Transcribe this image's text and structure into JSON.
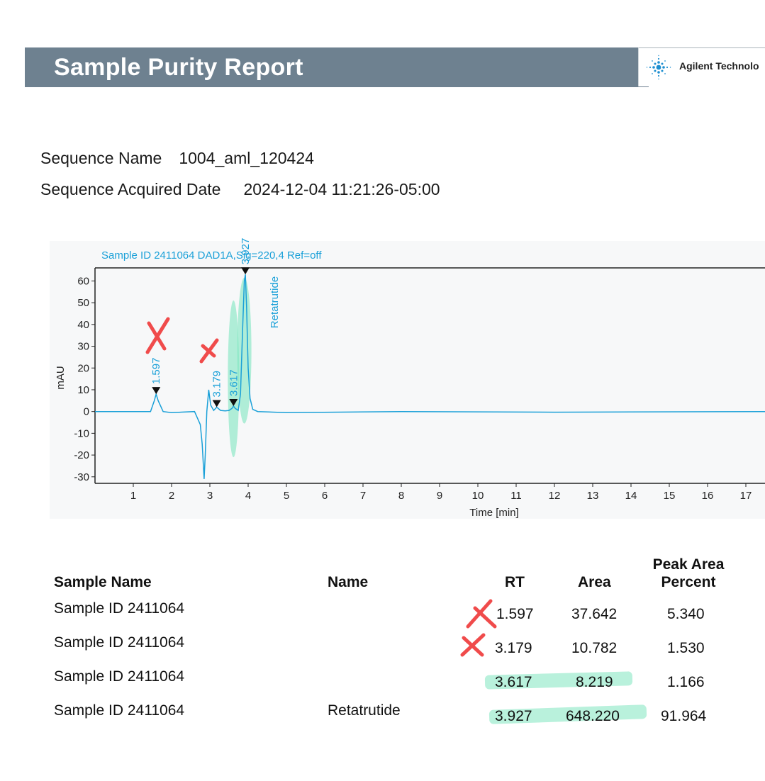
{
  "report": {
    "title": "Sample Purity Report",
    "brand": "Agilent Technolo"
  },
  "sequence": {
    "name_label": "Sequence Name",
    "name_value": "1004_aml_120424",
    "date_label": "Sequence Acquired Date",
    "date_value": "2024-12-04 11:21:26-05:00"
  },
  "colors": {
    "banner": "#6e8190",
    "trace": "#1aa0d8",
    "annotation_red": "#f04b4b",
    "highlight_green": "#7fe6c0"
  },
  "chart_data": {
    "type": "line",
    "title": "Sample ID 2411064 DAD1A,Sig=220,4  Ref=off",
    "xlabel": "Time [min]",
    "ylabel": "mAU",
    "xlim": [
      0,
      17.5
    ],
    "ylim": [
      -33,
      66
    ],
    "xticks": [
      1,
      2,
      3,
      4,
      5,
      6,
      7,
      8,
      9,
      10,
      11,
      12,
      13,
      14,
      15,
      16,
      17
    ],
    "yticks": [
      -30,
      -20,
      -10,
      0,
      10,
      20,
      30,
      40,
      50,
      60
    ],
    "series": [
      {
        "x": [
          0,
          1.0,
          1.45,
          1.55,
          1.597,
          1.65,
          1.78,
          2.0,
          2.6,
          2.75,
          2.8,
          2.85,
          2.88,
          2.92,
          2.97,
          3.02,
          3.1,
          3.179,
          3.28,
          3.4,
          3.5,
          3.58,
          3.617,
          3.66,
          3.74,
          3.8,
          3.85,
          3.9,
          3.927,
          3.96,
          4.0,
          4.05,
          4.12,
          4.25,
          5.0,
          8.0,
          12.0,
          17.5
        ],
        "y": [
          0,
          0,
          0,
          5,
          8,
          5,
          0,
          -0.5,
          0,
          -6,
          -15,
          -31,
          -20,
          0,
          10,
          3,
          0.5,
          2,
          0.5,
          0.3,
          0.5,
          1.5,
          2.5,
          1.5,
          0.5,
          8,
          35,
          60,
          63,
          48,
          20,
          6,
          1,
          0,
          -0.5,
          0,
          -0.3,
          0
        ]
      }
    ],
    "peak_labels": [
      {
        "rt": "1.597",
        "y": 8
      },
      {
        "rt": "3.179",
        "y": 2
      },
      {
        "rt": "3.617",
        "y": 2.5
      },
      {
        "rt": "3.927",
        "y": 63,
        "name": "Retatrutide"
      }
    ]
  },
  "table": {
    "headers": {
      "sample_name": "Sample Name",
      "name": "Name",
      "rt": "RT",
      "area": "Area",
      "pct_line1": "Peak Area",
      "pct_line2": "Percent"
    },
    "rows": [
      {
        "sample": "Sample ID 2411064",
        "name": "",
        "rt": "1.597",
        "area": "37.642",
        "pct": "5.340",
        "mark": "rejected"
      },
      {
        "sample": "Sample ID 2411064",
        "name": "",
        "rt": "3.179",
        "area": "10.782",
        "pct": "1.530",
        "mark": "rejected"
      },
      {
        "sample": "Sample ID 2411064",
        "name": "",
        "rt": "3.617",
        "area": "8.219",
        "pct": "1.166",
        "mark": "highlighted"
      },
      {
        "sample": "Sample ID 2411064",
        "name": "Retatrutide",
        "rt": "3.927",
        "area": "648.220",
        "pct": "91.964",
        "mark": "highlighted"
      }
    ]
  }
}
